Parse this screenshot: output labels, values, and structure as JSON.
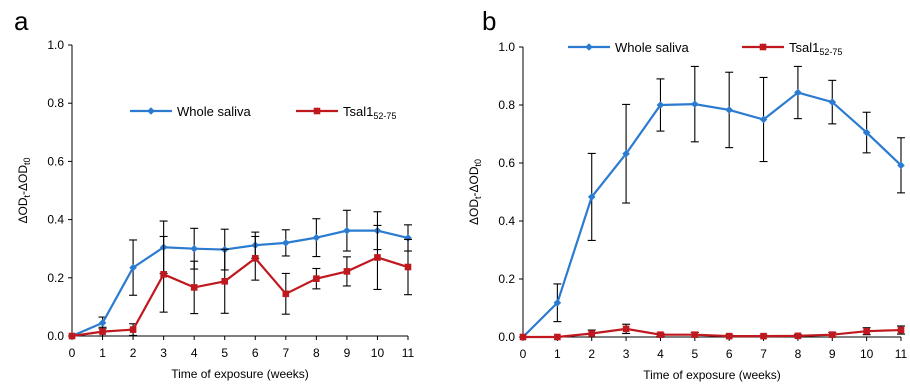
{
  "chart_data": [
    {
      "type": "line",
      "panel_label": "a",
      "xlabel": "Time of exposure (weeks)",
      "ylabel": "ΔOD_t-ΔOD_t0",
      "x": [
        0,
        1,
        2,
        3,
        4,
        5,
        6,
        7,
        8,
        9,
        10,
        11
      ],
      "xlim": [
        0,
        11
      ],
      "ylim": [
        0,
        1.0
      ],
      "yticks": [
        "0.0",
        "0.2",
        "0.4",
        "0.6",
        "0.8",
        "1.0"
      ],
      "legend_placement": "upper-center",
      "series": [
        {
          "name": "Whole saliva",
          "color": "#2b7bd0",
          "marker": "diamond",
          "values": [
            0.0,
            0.045,
            0.235,
            0.305,
            0.3,
            0.297,
            0.312,
            0.32,
            0.338,
            0.362,
            0.362,
            0.337
          ],
          "errors": [
            0.0,
            0.02,
            0.095,
            0.09,
            0.07,
            0.07,
            0.045,
            0.045,
            0.065,
            0.07,
            0.065,
            0.045
          ]
        },
        {
          "name": "Tsal1",
          "name_sub": "52-75",
          "color": "#c0181f",
          "marker": "square",
          "values": [
            0.0,
            0.015,
            0.022,
            0.212,
            0.167,
            0.188,
            0.267,
            0.145,
            0.197,
            0.222,
            0.27,
            0.237
          ],
          "errors": [
            0.0,
            0.015,
            0.02,
            0.13,
            0.09,
            0.11,
            0.075,
            0.07,
            0.035,
            0.05,
            0.11,
            0.095
          ]
        }
      ]
    },
    {
      "type": "line",
      "panel_label": "b",
      "xlabel": "Time of exposure (weeks)",
      "ylabel": "ΔOD_t-ΔOD_t0",
      "x": [
        0,
        1,
        2,
        3,
        4,
        5,
        6,
        7,
        8,
        9,
        10,
        11
      ],
      "xlim": [
        0,
        11
      ],
      "ylim": [
        0,
        1.0
      ],
      "yticks": [
        "0.0",
        "0.2",
        "0.4",
        "0.6",
        "0.8",
        "1.0"
      ],
      "legend_placement": "top",
      "series": [
        {
          "name": "Whole saliva",
          "color": "#2b7bd0",
          "marker": "diamond",
          "values": [
            0.0,
            0.118,
            0.483,
            0.632,
            0.8,
            0.803,
            0.783,
            0.75,
            0.843,
            0.81,
            0.705,
            0.592
          ],
          "errors": [
            0.0,
            0.065,
            0.15,
            0.17,
            0.09,
            0.13,
            0.13,
            0.145,
            0.09,
            0.075,
            0.07,
            0.095
          ]
        },
        {
          "name": "Tsal1",
          "name_sub": "52-75",
          "color": "#c0181f",
          "marker": "square",
          "values": [
            0.0,
            0.0,
            0.012,
            0.028,
            0.008,
            0.008,
            0.003,
            0.003,
            0.004,
            0.008,
            0.02,
            0.024
          ],
          "errors": [
            0.0,
            0.0,
            0.012,
            0.016,
            0.005,
            0.008,
            0.004,
            0.003,
            0.004,
            0.008,
            0.012,
            0.014
          ]
        }
      ]
    }
  ]
}
